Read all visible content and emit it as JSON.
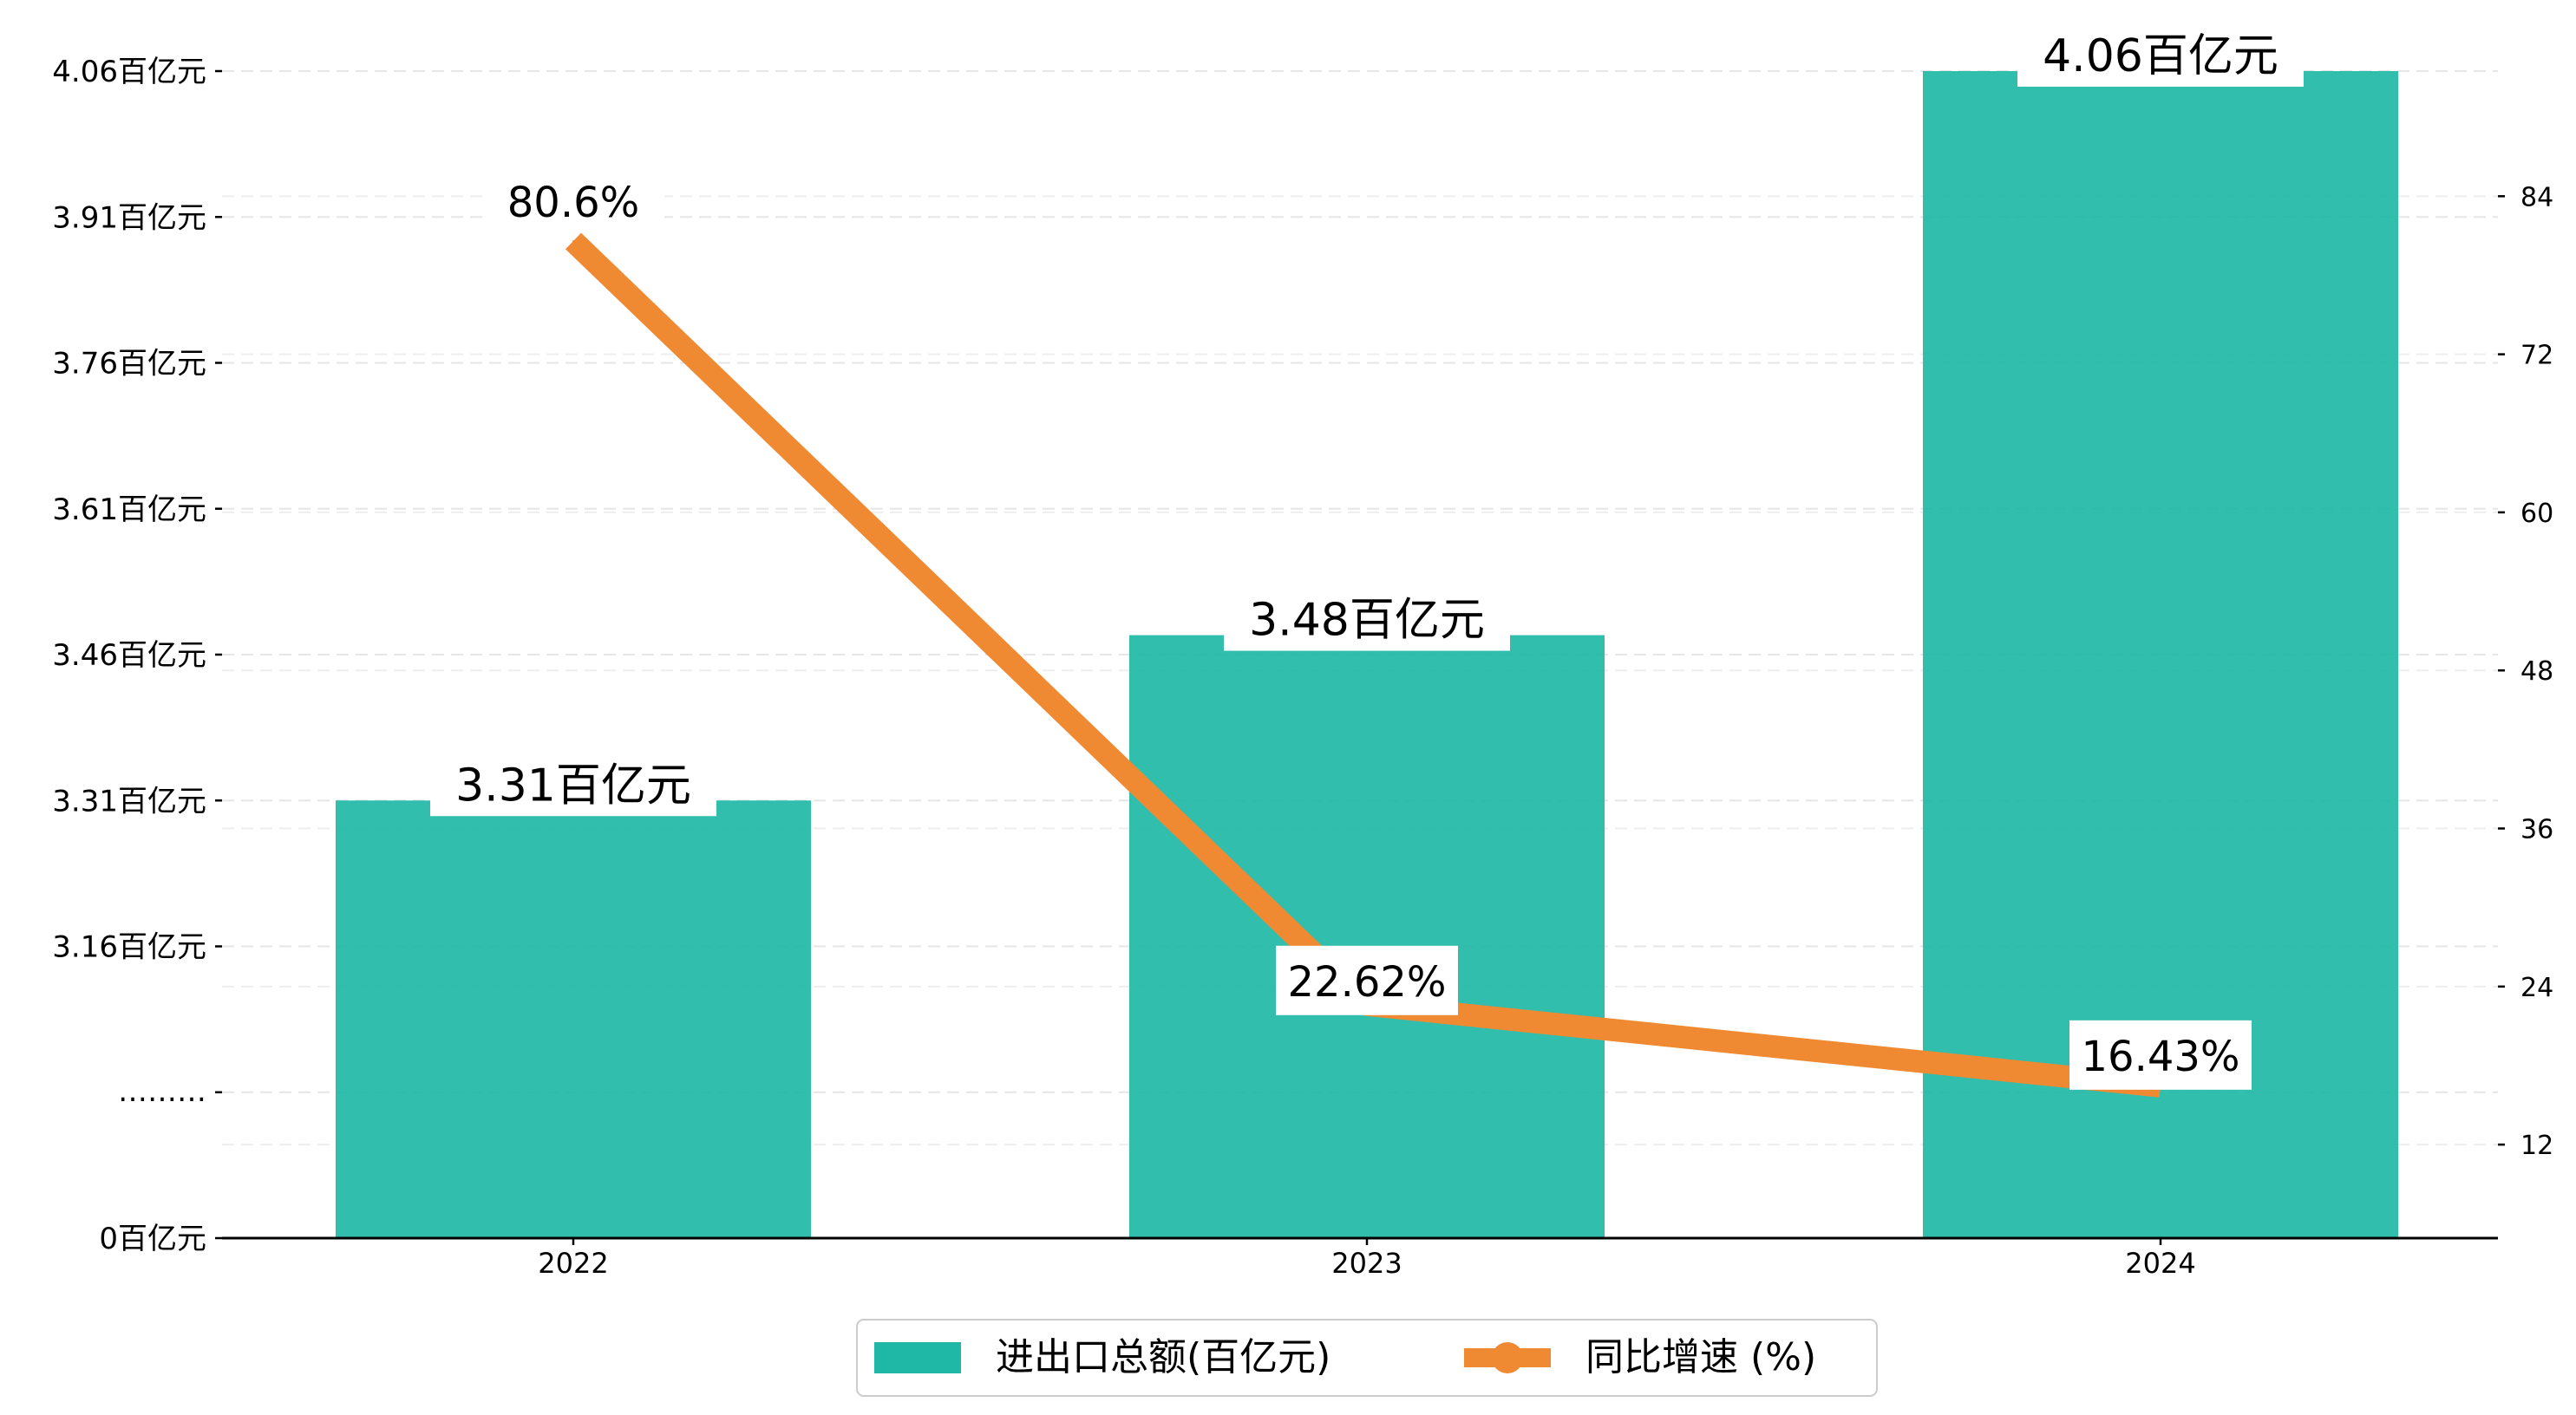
{
  "chart_data": {
    "type": "bar",
    "categories": [
      "2022",
      "2023",
      "2024"
    ],
    "series": [
      {
        "name": "进出口总额(百亿元)",
        "kind": "bar",
        "axis": "left",
        "color": "#1fb8a6",
        "values": [
          3.31,
          3.48,
          4.06
        ],
        "labels": [
          "3.31百亿元",
          "3.48百亿元",
          "4.06百亿元"
        ]
      },
      {
        "name": "同比增速 (%)",
        "kind": "line",
        "axis": "right",
        "color": "#f08a32",
        "values": [
          80.6,
          22.62,
          16.43
        ],
        "labels": [
          "80.6%",
          "22.62%",
          "16.43%"
        ]
      }
    ],
    "left_axis": {
      "broken": true,
      "break_label": "………",
      "ticks": [
        {
          "value": 0,
          "label": "0百亿元"
        },
        {
          "value": 3.16,
          "label": "3.16百亿元"
        },
        {
          "value": 3.31,
          "label": "3.31百亿元"
        },
        {
          "value": 3.46,
          "label": "3.46百亿元"
        },
        {
          "value": 3.61,
          "label": "3.61百亿元"
        },
        {
          "value": 3.76,
          "label": "3.76百亿元"
        },
        {
          "value": 3.91,
          "label": "3.91百亿元"
        },
        {
          "value": 4.06,
          "label": "4.06百亿元"
        }
      ]
    },
    "right_axis": {
      "ylim": [
        4.9,
        93.5
      ],
      "ticks": [
        12,
        24,
        36,
        48,
        60,
        72,
        84
      ]
    },
    "grid": true,
    "legend": "bottom-center"
  }
}
